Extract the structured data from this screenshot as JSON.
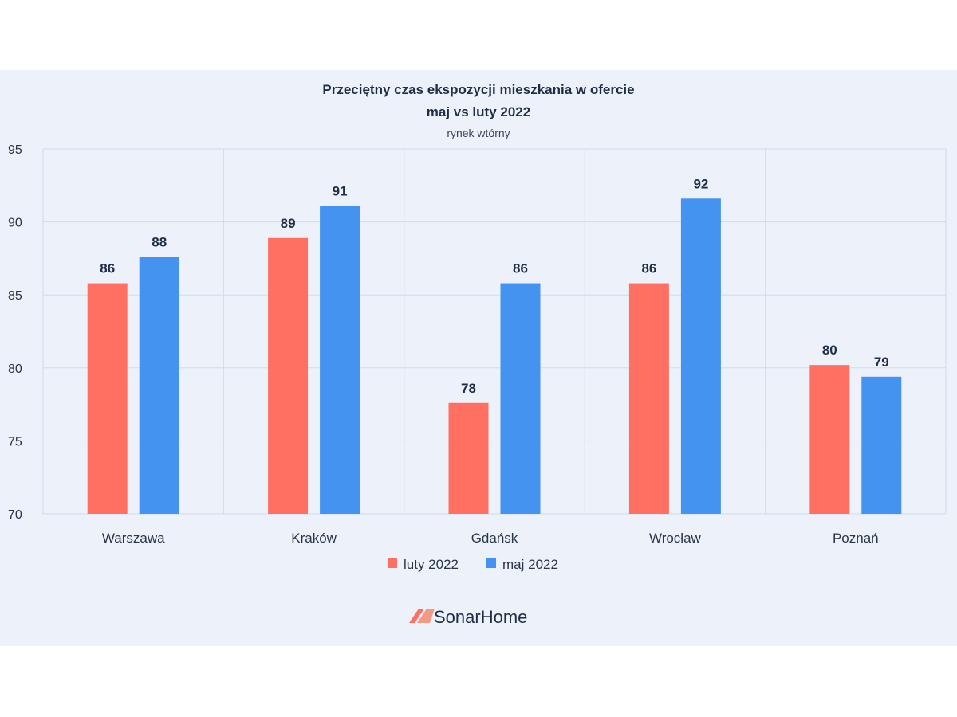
{
  "chart_data": {
    "type": "bar",
    "title": "Przeciętny czas ekspozycji mieszkania w ofercie",
    "title_line2": "maj vs luty 2022",
    "subtitle": "rynek wtórny",
    "categories": [
      "Warszawa",
      "Kraków",
      "Gdańsk",
      "Wrocław",
      "Poznań"
    ],
    "series": [
      {
        "name": "luty 2022",
        "color": "#ff7062",
        "values": [
          85.8,
          88.9,
          77.6,
          85.8,
          80.2
        ],
        "labels": [
          "86",
          "89",
          "78",
          "86",
          "80"
        ]
      },
      {
        "name": "maj 2022",
        "color": "#4493f0",
        "values": [
          87.6,
          91.1,
          85.8,
          91.6,
          79.4
        ],
        "labels": [
          "88",
          "91",
          "86",
          "92",
          "79"
        ]
      }
    ],
    "ylim": [
      70,
      95
    ],
    "yticks": [
      70,
      75,
      80,
      85,
      90,
      95
    ],
    "grid": true,
    "legend_position": "bottom"
  },
  "brand": {
    "name": "SonarHome"
  }
}
